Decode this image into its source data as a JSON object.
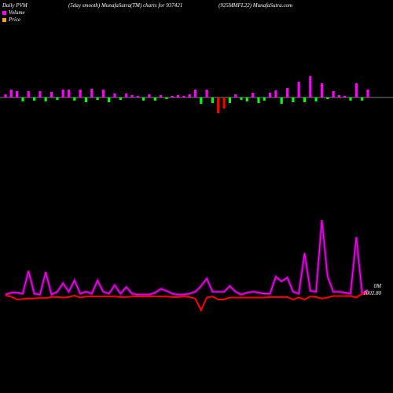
{
  "header": {
    "left": "Daily PVM",
    "center": "(5day smooth) MunafaSutra(TM) charts for 937421",
    "right": "(925MMFL22) MunafaSutra.com"
  },
  "legend": [
    {
      "label": "Volume",
      "color": "#ff00ff"
    },
    {
      "label": "Price",
      "color": "#ffa500"
    }
  ],
  "colors": {
    "background": "#000000",
    "volume_line": "#ff00ff",
    "price_line": "#ff0000",
    "bar_up": "#ff00ff",
    "bar_down": "#00ff00",
    "bar_strong_down": "#ff0000",
    "axis": "#ffffff"
  },
  "labels": {
    "volume_tag": "0M",
    "price_tag": "1002.80"
  },
  "chart_data": [
    {
      "type": "bar",
      "name": "Volume change",
      "values": [
        4,
        10,
        8,
        -5,
        8,
        -4,
        8,
        -5,
        7,
        -3,
        10,
        10,
        -4,
        10,
        -6,
        11,
        -3,
        10,
        -6,
        5,
        -3,
        5,
        3,
        2,
        -4,
        4,
        -4,
        3,
        -2,
        2,
        3,
        2,
        4,
        10,
        -8,
        10,
        -7,
        -20,
        -14,
        -7,
        4,
        -3,
        -5,
        6,
        -7,
        -4,
        6,
        9,
        -8,
        12,
        -6,
        20,
        -6,
        27,
        -5,
        18,
        -2,
        8,
        3,
        2,
        -4,
        18,
        -4,
        10
      ],
      "ylim": [
        -22,
        30
      ]
    },
    {
      "type": "line",
      "series": [
        {
          "name": "Volume",
          "values": [
            1,
            3,
            3,
            2,
            26,
            2,
            1,
            25,
            1,
            4,
            13,
            4,
            16,
            2,
            4,
            2,
            16,
            4,
            2,
            11,
            2,
            9,
            2,
            1,
            1,
            1,
            3,
            7,
            5,
            2,
            1,
            1,
            2,
            4,
            10,
            18,
            4,
            4,
            4,
            10,
            4,
            1,
            3,
            4,
            3,
            2,
            2,
            20,
            15,
            19,
            4,
            2,
            45,
            5,
            4,
            80,
            20,
            4,
            4,
            3,
            2,
            62,
            2,
            6
          ]
        },
        {
          "name": "Price",
          "values": [
            1002.6,
            1002.5,
            1002.2,
            1002.25,
            1002.3,
            1002.3,
            1002.35,
            1002.35,
            1002.45,
            1002.45,
            1002.4,
            1002.45,
            1002.6,
            1002.4,
            1002.5,
            1002.5,
            1002.5,
            1002.5,
            1002.5,
            1002.5,
            1002.45,
            1002.45,
            1002.5,
            1002.5,
            1002.5,
            1002.5,
            1002.5,
            1002.5,
            1002.5,
            1002.45,
            1002.45,
            1002.5,
            1002.45,
            1002.3,
            1001.1,
            1002.4,
            1002.5,
            1002.2,
            1002.2,
            1002.4,
            1002.4,
            1002.4,
            1002.4,
            1002.4,
            1002.4,
            1002.4,
            1002.45,
            1002.45,
            1002.45,
            1002.45,
            1002.2,
            1002.4,
            1002.2,
            1002.5,
            1002.45,
            1002.3,
            1002.4,
            1002.55,
            1002.55,
            1002.55,
            1002.55,
            1002.4,
            1002.8,
            1002.8
          ]
        }
      ],
      "volume_ylim": [
        0,
        100
      ],
      "price_ylim": [
        1000.6,
        1008.6
      ]
    }
  ]
}
